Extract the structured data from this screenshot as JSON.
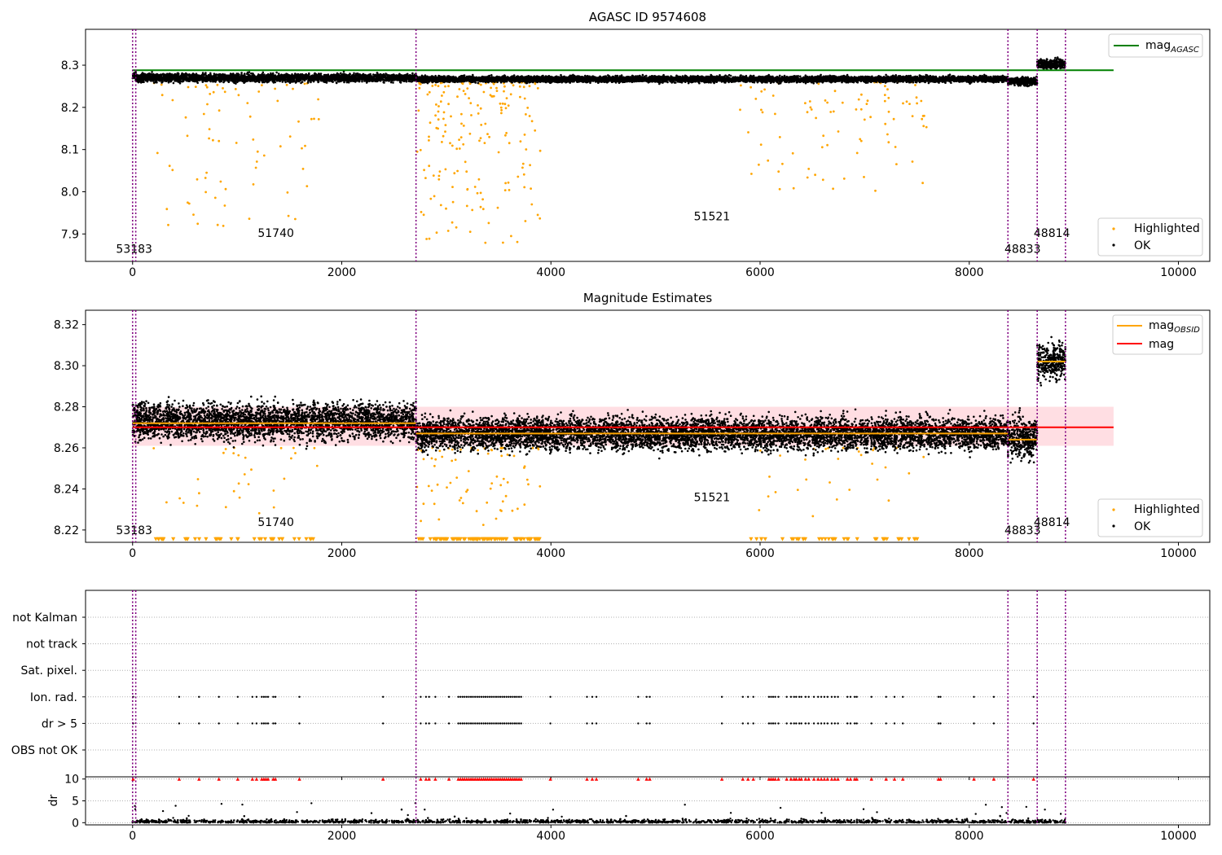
{
  "colors": {
    "ok": "#000000",
    "highlighted": "#ffa500",
    "agasc_line": "#008000",
    "mag_line": "#ff0000",
    "obsid_line": "#ffa500",
    "band": "#ffb6c1",
    "vline": "#800080",
    "flag_red": "#ff0000"
  },
  "chart_data": [
    {
      "type": "scatter",
      "title": "AGASC ID 9574608",
      "xlim": [
        -450,
        10300
      ],
      "ylim": [
        7.835,
        8.385
      ],
      "xticks": [
        0,
        2000,
        4000,
        6000,
        8000,
        10000
      ],
      "xtick_labels": [
        "0",
        "2000",
        "4000",
        "6000",
        "8000",
        "10000"
      ],
      "yticks": [
        7.9,
        8.0,
        8.1,
        8.2,
        8.3
      ],
      "ytick_labels": [
        "7.9",
        "8.0",
        "8.1",
        "8.2",
        "8.3"
      ],
      "agasc_mag": 8.288,
      "agasc_line_x": [
        0,
        9380
      ],
      "obsid_boundaries": [
        0,
        30,
        2710,
        8370,
        8650,
        8920
      ],
      "obsid_labels": [
        {
          "text": "53183",
          "x": 15,
          "y": 7.855
        },
        {
          "text": "51740",
          "x": 1370,
          "y": 7.893
        },
        {
          "text": "51521",
          "x": 5540,
          "y": 7.932
        },
        {
          "text": "48833",
          "x": 8510,
          "y": 7.855
        },
        {
          "text": "48814",
          "x": 8790,
          "y": 7.893
        }
      ],
      "segments": [
        {
          "x": [
            0,
            30
          ],
          "ok_level": 8.277,
          "ok_spread": 0.006
        },
        {
          "x": [
            30,
            2710
          ],
          "ok_level": 8.27,
          "ok_spread": 0.008
        },
        {
          "x": [
            2710,
            8370
          ],
          "ok_level": 8.267,
          "ok_spread": 0.006
        },
        {
          "x": [
            8370,
            8650
          ],
          "ok_level": 8.262,
          "ok_spread": 0.008
        },
        {
          "x": [
            8650,
            8920
          ],
          "ok_level": 8.303,
          "ok_spread": 0.009
        }
      ],
      "highlighted_clusters": [
        {
          "x": [
            200,
            1800
          ],
          "y_min": 7.91,
          "y_max": 8.26,
          "count": 75
        },
        {
          "x": [
            2720,
            3900
          ],
          "y_min": 7.87,
          "y_max": 8.26,
          "count": 190
        },
        {
          "x": [
            5800,
            7600
          ],
          "y_min": 8.0,
          "y_max": 8.26,
          "count": 90
        }
      ],
      "legend": {
        "entries": [
          "mag_{AGASC}",
          "Highlighted",
          "OK"
        ],
        "placement": "upper-right and lower-right"
      }
    },
    {
      "type": "scatter",
      "title": "Magnitude Estimates",
      "xlim": [
        -450,
        10300
      ],
      "ylim": [
        8.214,
        8.327
      ],
      "xticks": [
        0,
        2000,
        4000,
        6000,
        8000,
        10000
      ],
      "xtick_labels": [
        "0",
        "2000",
        "4000",
        "6000",
        "8000",
        "10000"
      ],
      "yticks": [
        8.22,
        8.24,
        8.26,
        8.28,
        8.3,
        8.32
      ],
      "ytick_labels": [
        "8.22",
        "8.24",
        "8.26",
        "8.28",
        "8.30",
        "8.32"
      ],
      "mag": 8.27,
      "mag_band": [
        8.261,
        8.28
      ],
      "mag_line_x": [
        0,
        9380
      ],
      "obsid_mags": [
        {
          "x": [
            0,
            2710
          ],
          "mag": 8.272
        },
        {
          "x": [
            2710,
            8370
          ],
          "mag": 8.267
        },
        {
          "x": [
            8370,
            8650
          ],
          "mag": 8.264
        },
        {
          "x": [
            8650,
            8920
          ],
          "mag": 8.302
        }
      ],
      "obsid_boundaries": [
        0,
        30,
        2710,
        8370,
        8650,
        8920
      ],
      "obsid_labels": [
        {
          "text": "53183",
          "x": 15,
          "y": 8.218
        },
        {
          "text": "51740",
          "x": 1370,
          "y": 8.222
        },
        {
          "text": "51521",
          "x": 5540,
          "y": 8.234
        },
        {
          "text": "48833",
          "x": 8510,
          "y": 8.218
        },
        {
          "text": "48814",
          "x": 8790,
          "y": 8.222
        }
      ],
      "segments": [
        {
          "x": [
            0,
            2710
          ],
          "ok_level": 8.273,
          "ok_spread": 0.0075
        },
        {
          "x": [
            2710,
            8370
          ],
          "ok_level": 8.267,
          "ok_spread": 0.0065
        },
        {
          "x": [
            8370,
            8650
          ],
          "ok_level": 8.265,
          "ok_spread": 0.0085
        },
        {
          "x": [
            8650,
            8920
          ],
          "ok_level": 8.302,
          "ok_spread": 0.0075
        }
      ],
      "highlighted_clusters": [
        {
          "x": [
            200,
            1800
          ],
          "y_min": 8.222,
          "y_max": 8.26,
          "count": 30
        },
        {
          "x": [
            2720,
            3900
          ],
          "y_min": 8.222,
          "y_max": 8.26,
          "count": 70
        },
        {
          "x": [
            5800,
            7600
          ],
          "y_min": 8.222,
          "y_max": 8.26,
          "count": 30
        }
      ],
      "clipped_marker_y": 8.2155,
      "legend": {
        "entries": [
          "mag_{OBSID}",
          "mag",
          "Highlighted",
          "OK"
        ],
        "placement": "upper-right and lower-right"
      }
    },
    {
      "type": "scatter",
      "title": "",
      "xlim": [
        -450,
        10300
      ],
      "categories": [
        "not Kalman",
        "not track",
        "Sat. pixel.",
        "Ion. rad.",
        "dr > 5",
        "OBS not OK"
      ],
      "flagged_rows": [
        "Ion. rad.",
        "dr > 5"
      ],
      "obsid_boundaries": [
        0,
        30,
        2710,
        8370,
        8650,
        8920
      ]
    },
    {
      "type": "scatter",
      "title": "",
      "xlim": [
        -450,
        10300
      ],
      "ylim": [
        -0.5,
        10.5
      ],
      "xticks": [
        0,
        2000,
        4000,
        6000,
        8000,
        10000
      ],
      "xtick_labels": [
        "0",
        "2000",
        "4000",
        "6000",
        "8000",
        "10000"
      ],
      "yticks": [
        0,
        5,
        10
      ],
      "ytick_labels": [
        "0",
        "5",
        "10"
      ],
      "ylabel": "dr",
      "obsid_boundaries": [
        0,
        30,
        2710,
        8370,
        8650,
        8920
      ],
      "clipped_marker_y": 10
    }
  ],
  "flag_times": [
    5,
    445,
    635,
    825,
    1005,
    1145,
    1185,
    1235,
    1255,
    1275,
    1295,
    1345,
    1365,
    1595,
    2395,
    2755,
    2805,
    2835,
    2895,
    3025,
    3115,
    3135,
    3155,
    3175,
    3195,
    3215,
    3235,
    3255,
    3275,
    3295,
    3315,
    3335,
    3355,
    3375,
    3395,
    3415,
    3435,
    3455,
    3475,
    3495,
    3515,
    3535,
    3555,
    3575,
    3595,
    3615,
    3635,
    3655,
    3675,
    3695,
    3715,
    3995,
    4345,
    4395,
    4435,
    4835,
    4915,
    4945,
    5635,
    5835,
    5885,
    5935,
    6085,
    6105,
    6125,
    6145,
    6175,
    6255,
    6295,
    6325,
    6345,
    6375,
    6395,
    6435,
    6465,
    6515,
    6555,
    6585,
    6615,
    6645,
    6685,
    6715,
    6745,
    6835,
    6865,
    6905,
    6925,
    7065,
    7205,
    7285,
    7365,
    7705,
    7725,
    8045,
    8235,
    8615
  ]
}
